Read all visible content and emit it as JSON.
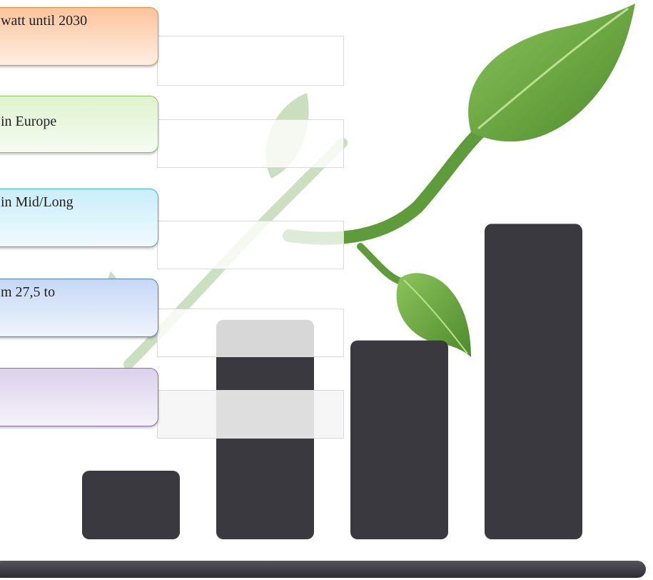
{
  "labels": [
    {
      "text": "watt until 2030",
      "fill": "#fbc49c",
      "border": "#ee8a3d"
    },
    {
      "text": "in Europe",
      "fill": "#dff3cf",
      "border": "#8cc466"
    },
    {
      "text": "in Mid/Long",
      "fill": "#c9eefb",
      "border": "#44aed4"
    },
    {
      "text": "m 27,5 to",
      "fill": "#c6d8f6",
      "border": "#4d7ed0"
    },
    {
      "text": "",
      "fill": "#dcd1ec",
      "border": "#8a6cb8"
    }
  ],
  "chart_data": {
    "type": "bar",
    "categories": [
      "",
      "",
      "",
      ""
    ],
    "values": [
      1,
      3.2,
      2.9,
      4.6
    ],
    "bar_color": "#3a393f",
    "leaf_color": "#69a544"
  }
}
